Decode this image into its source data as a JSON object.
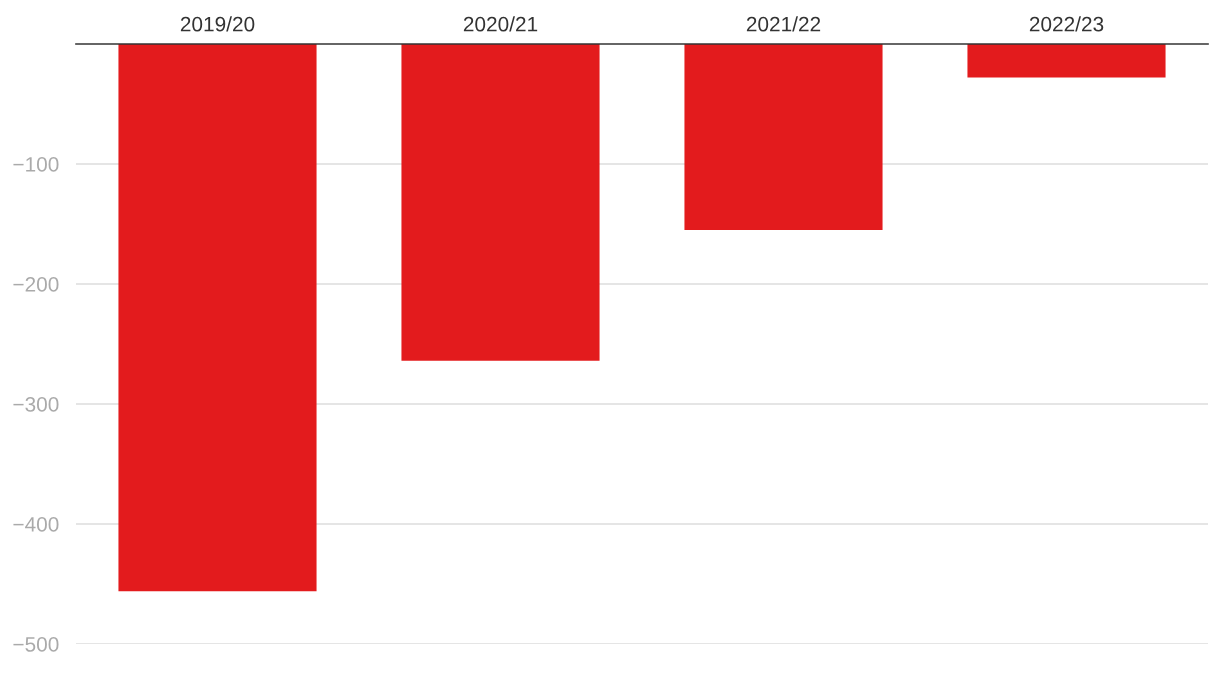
{
  "chart_data": {
    "type": "bar",
    "categories": [
      "2019/20",
      "2020/21",
      "2021/22",
      "2022/23"
    ],
    "values": [
      -456,
      -264,
      -155,
      -28
    ],
    "color": "#e31b1d",
    "ylim": [
      -500,
      0
    ],
    "yticks": [
      {
        "value": -100,
        "label": "−100"
      },
      {
        "value": -200,
        "label": "−200"
      },
      {
        "value": -300,
        "label": "−300"
      },
      {
        "value": -400,
        "label": "−400"
      },
      {
        "value": -500,
        "label": "−500"
      }
    ],
    "grid": "y"
  }
}
